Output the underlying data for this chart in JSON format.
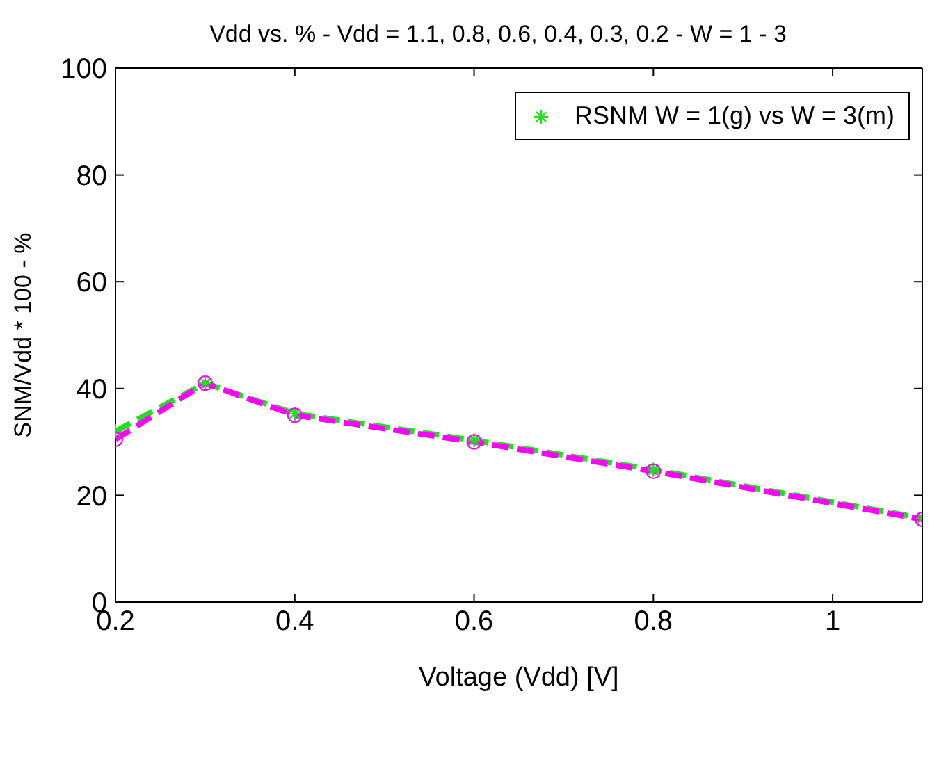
{
  "chart_data": {
    "type": "line",
    "title": "Vdd vs. % - Vdd = 1.1, 0.8, 0.6, 0.4, 0.3, 0.2 - W = 1 - 3",
    "xlabel": "Voltage (Vdd) [V]",
    "ylabel": "SNM/Vdd * 100 - %",
    "x": [
      0.2,
      0.3,
      0.4,
      0.6,
      0.8,
      1.1
    ],
    "series": [
      {
        "name": "RSNM W = 1(g) vs W = 3(m)",
        "color": "#22dd22",
        "marker": "cross",
        "values": [
          32,
          41,
          35.3,
          30.3,
          24.8,
          15.7
        ]
      },
      {
        "color": "#ff00ff",
        "marker": "circle",
        "values": [
          30.5,
          41,
          35,
          30,
          24.5,
          15.5
        ]
      }
    ],
    "xlim": [
      0.2,
      1.1
    ],
    "xticks": [
      0.2,
      0.4,
      0.6,
      0.8,
      1
    ],
    "ylim": [
      0,
      100
    ],
    "yticks": [
      0,
      20,
      40,
      60,
      80,
      100
    ],
    "legend": "top right",
    "line_style": "dashed"
  }
}
